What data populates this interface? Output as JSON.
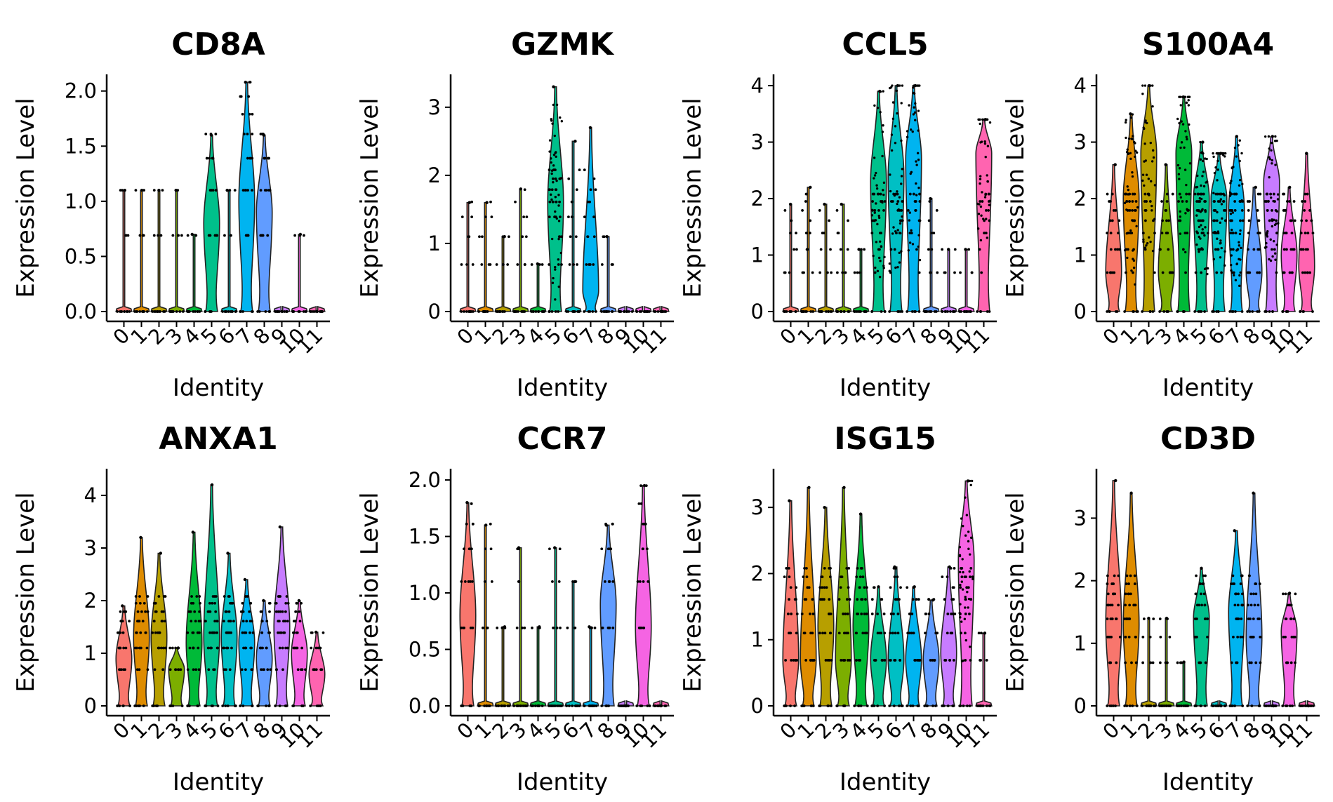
{
  "chart_data": [
    {
      "type": "violin",
      "title": "CD8A",
      "xlabel": "Identity",
      "ylabel": "Expression Level",
      "categories": [
        "0",
        "1",
        "2",
        "3",
        "4",
        "5",
        "6",
        "7",
        "8",
        "9",
        "10",
        "11"
      ],
      "ylim": [
        0,
        2.1
      ],
      "yticks": [
        0.0,
        0.5,
        1.0,
        1.5,
        2.0
      ],
      "ytick_labels": [
        "0.0",
        "0.5",
        "1.0",
        "1.5",
        "2.0"
      ],
      "max": [
        1.1,
        1.1,
        1.1,
        1.1,
        0.7,
        1.6,
        1.1,
        2.08,
        1.6,
        0.0,
        0.7,
        0.0
      ],
      "bulk": [
        0.0,
        0.0,
        0.0,
        0.0,
        0.0,
        0.8,
        0.0,
        1.0,
        0.9,
        0.0,
        0.0,
        0.0
      ]
    },
    {
      "type": "violin",
      "title": "GZMK",
      "xlabel": "Identity",
      "ylabel": "Expression Level",
      "categories": [
        "0",
        "1",
        "2",
        "3",
        "4",
        "5",
        "6",
        "7",
        "8",
        "9",
        "10",
        "11"
      ],
      "ylim": [
        0,
        3.4
      ],
      "yticks": [
        0,
        1,
        2,
        3
      ],
      "ytick_labels": [
        "0",
        "1",
        "2",
        "3"
      ],
      "max": [
        1.6,
        1.6,
        1.1,
        1.8,
        0.7,
        3.3,
        2.5,
        2.7,
        1.1,
        0.0,
        0.0,
        0.0
      ],
      "bulk": [
        0.0,
        0.0,
        0.0,
        0.0,
        0.0,
        1.6,
        0.0,
        0.3,
        0.0,
        0.0,
        0.0,
        0.0
      ]
    },
    {
      "type": "violin",
      "title": "CCL5",
      "xlabel": "Identity",
      "ylabel": "Expression Level",
      "categories": [
        "0",
        "1",
        "2",
        "3",
        "4",
        "5",
        "6",
        "7",
        "8",
        "9",
        "10",
        "11"
      ],
      "ylim": [
        0,
        4.1
      ],
      "yticks": [
        0,
        1,
        2,
        3,
        4
      ],
      "ytick_labels": [
        "0",
        "1",
        "2",
        "3",
        "4"
      ],
      "max": [
        1.9,
        2.2,
        1.9,
        1.9,
        1.1,
        3.9,
        4.0,
        4.0,
        2.0,
        1.1,
        1.1,
        3.4
      ],
      "bulk": [
        0.0,
        0.0,
        0.0,
        0.0,
        0.0,
        2.3,
        2.4,
        2.7,
        0.0,
        0.0,
        0.0,
        2.8
      ]
    },
    {
      "type": "violin",
      "title": "S100A4",
      "xlabel": "Identity",
      "ylabel": "Expression Level",
      "categories": [
        "0",
        "1",
        "2",
        "3",
        "4",
        "5",
        "6",
        "7",
        "8",
        "9",
        "10",
        "11"
      ],
      "ylim": [
        0,
        4.1
      ],
      "yticks": [
        0,
        1,
        2,
        3,
        4
      ],
      "ytick_labels": [
        "0",
        "1",
        "2",
        "3",
        "4"
      ],
      "max": [
        2.6,
        3.5,
        4.0,
        2.6,
        3.8,
        3.0,
        2.8,
        3.1,
        2.2,
        3.1,
        2.2,
        2.8
      ],
      "bulk": [
        0.7,
        2.0,
        2.8,
        0.7,
        2.8,
        2.0,
        2.0,
        1.8,
        0.7,
        2.3,
        1.0,
        0.8
      ]
    },
    {
      "type": "violin",
      "title": "ANXA1",
      "xlabel": "Identity",
      "ylabel": "Expression Level",
      "categories": [
        "0",
        "1",
        "2",
        "3",
        "4",
        "5",
        "6",
        "7",
        "8",
        "9",
        "10",
        "11"
      ],
      "ylim": [
        0,
        4.4
      ],
      "yticks": [
        0,
        1,
        2,
        3,
        4
      ],
      "ytick_labels": [
        "0",
        "1",
        "2",
        "3",
        "4"
      ],
      "max": [
        1.9,
        3.2,
        2.9,
        1.1,
        3.3,
        4.2,
        2.9,
        2.4,
        2.0,
        3.4,
        2.0,
        1.4
      ],
      "bulk": [
        0.9,
        1.3,
        1.3,
        0.7,
        1.2,
        1.3,
        1.3,
        1.2,
        0.9,
        1.5,
        1.0,
        0.6
      ]
    },
    {
      "type": "violin",
      "title": "CCR7",
      "xlabel": "Identity",
      "ylabel": "Expression Level",
      "categories": [
        "0",
        "1",
        "2",
        "3",
        "4",
        "5",
        "6",
        "7",
        "8",
        "9",
        "10",
        "11"
      ],
      "ylim": [
        0,
        2.05
      ],
      "yticks": [
        0.0,
        0.5,
        1.0,
        1.5,
        2.0
      ],
      "ytick_labels": [
        "0.0",
        "0.5",
        "1.0",
        "1.5",
        "2.0"
      ],
      "max": [
        1.8,
        1.6,
        0.7,
        1.4,
        0.7,
        1.4,
        1.1,
        0.7,
        1.6,
        0.0,
        1.95,
        0.0
      ],
      "bulk": [
        0.8,
        0.0,
        0.0,
        0.0,
        0.0,
        0.0,
        0.0,
        0.0,
        0.9,
        0.0,
        0.7,
        0.0
      ]
    },
    {
      "type": "violin",
      "title": "ISG15",
      "xlabel": "Identity",
      "ylabel": "Expression Level",
      "categories": [
        "0",
        "1",
        "2",
        "3",
        "4",
        "5",
        "6",
        "7",
        "8",
        "9",
        "10",
        "11"
      ],
      "ylim": [
        0,
        3.5
      ],
      "yticks": [
        0,
        1,
        2,
        3
      ],
      "ytick_labels": [
        "0",
        "1",
        "2",
        "3"
      ],
      "max": [
        3.1,
        3.3,
        3.0,
        3.3,
        2.9,
        1.8,
        2.1,
        1.8,
        1.6,
        2.1,
        3.4,
        1.1
      ],
      "bulk": [
        0.7,
        0.7,
        1.2,
        0.7,
        1.2,
        0.7,
        0.7,
        0.7,
        0.7,
        0.8,
        2.2,
        0.0
      ]
    },
    {
      "type": "violin",
      "title": "CD3D",
      "xlabel": "Identity",
      "ylabel": "Expression Level",
      "categories": [
        "0",
        "1",
        "2",
        "3",
        "4",
        "5",
        "6",
        "7",
        "8",
        "9",
        "10",
        "11"
      ],
      "ylim": [
        0,
        3.7
      ],
      "yticks": [
        0,
        1,
        2,
        3
      ],
      "ytick_labels": [
        "0",
        "1",
        "2",
        "3"
      ],
      "max": [
        3.6,
        3.4,
        1.4,
        1.4,
        0.7,
        2.2,
        0.0,
        2.8,
        3.4,
        0.0,
        1.8,
        0.0
      ],
      "bulk": [
        1.3,
        1.3,
        0.0,
        0.0,
        0.0,
        1.4,
        0.0,
        1.5,
        1.1,
        0.0,
        1.2,
        0.0
      ]
    }
  ],
  "palette": [
    "#F8766D",
    "#DE8C00",
    "#B79F00",
    "#7CAE00",
    "#00BA38",
    "#00C08B",
    "#00BFC4",
    "#00B4F0",
    "#619CFF",
    "#C77CFF",
    "#F564E3",
    "#FF64B0"
  ]
}
